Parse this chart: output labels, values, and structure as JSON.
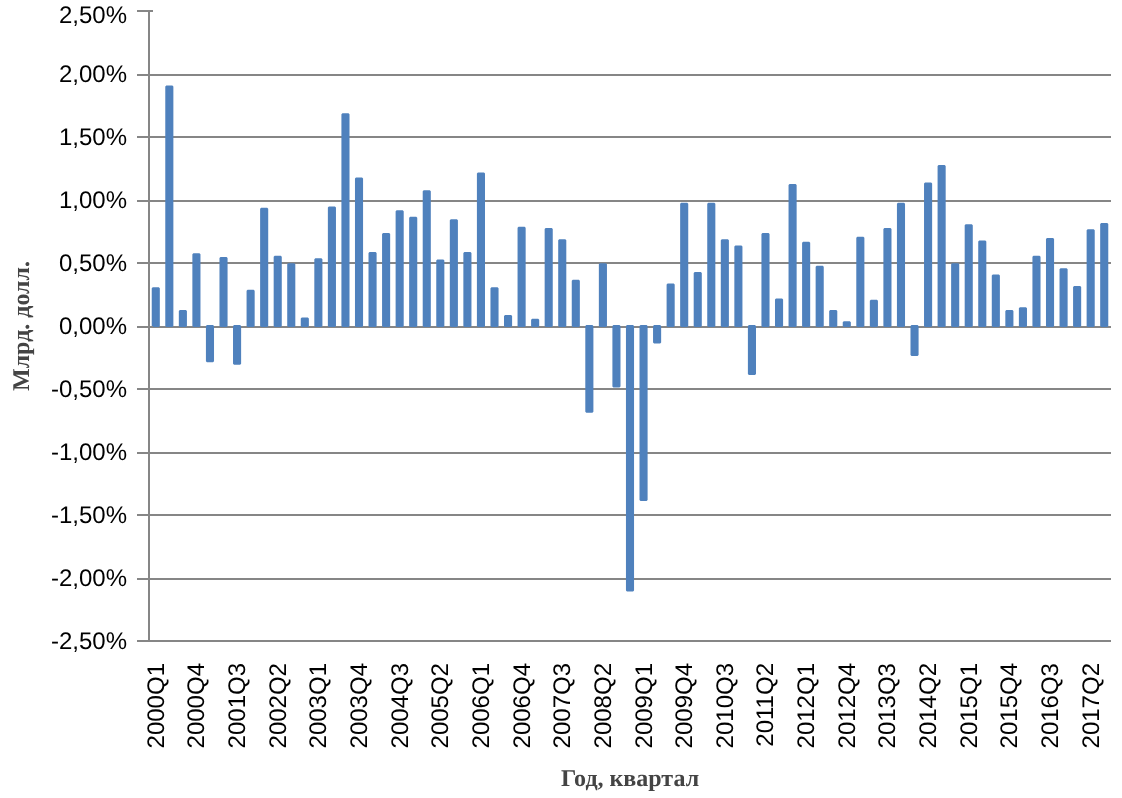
{
  "chart_data": {
    "type": "bar",
    "xlabel": "Год, квартал",
    "ylabel": "Млрд. долл.",
    "categories": [
      "2000Q1",
      null,
      null,
      "2000Q4",
      null,
      null,
      "2001Q3",
      null,
      null,
      "2002Q2",
      null,
      null,
      "2003Q1",
      null,
      null,
      "2003Q4",
      null,
      null,
      "2004Q3",
      null,
      null,
      "2005Q2",
      null,
      null,
      "2006Q1",
      null,
      null,
      "2006Q4",
      null,
      null,
      "2007Q3",
      null,
      null,
      "2008Q2",
      null,
      null,
      "2009Q1",
      null,
      null,
      "2009Q4",
      null,
      null,
      "2010Q3",
      null,
      null,
      "2011Q2",
      null,
      null,
      "2012Q1",
      null,
      null,
      "2012Q4",
      null,
      null,
      "2013Q3",
      null,
      null,
      "2014Q2",
      null,
      null,
      "2015Q1",
      null,
      null,
      "2015Q4",
      null,
      null,
      "2016Q3",
      null,
      null,
      "2017Q2",
      null
    ],
    "values": [
      0.3,
      1.9,
      0.12,
      0.57,
      -0.28,
      0.54,
      -0.3,
      0.28,
      0.93,
      0.55,
      0.49,
      0.06,
      0.53,
      0.94,
      1.68,
      1.17,
      0.58,
      0.73,
      0.91,
      0.86,
      1.07,
      0.52,
      0.84,
      0.58,
      1.21,
      0.3,
      0.08,
      0.78,
      0.05,
      0.77,
      0.68,
      0.36,
      -0.68,
      0.49,
      -0.48,
      -2.1,
      -1.38,
      -0.13,
      0.33,
      0.97,
      0.42,
      0.97,
      0.68,
      0.63,
      -0.38,
      0.73,
      0.21,
      1.12,
      0.66,
      0.47,
      0.12,
      0.03,
      0.7,
      0.2,
      0.77,
      0.97,
      -0.23,
      1.13,
      1.27,
      0.49,
      0.8,
      0.67,
      0.4,
      0.12,
      0.14,
      0.55,
      0.69,
      0.45,
      0.31,
      0.76,
      0.81
    ],
    "color": "#4f81bd",
    "ylim": [
      -2.5,
      2.5
    ],
    "yticks": [
      {
        "value": -2.5,
        "label": "-2,50%"
      },
      {
        "value": -2.0,
        "label": "-2,00%"
      },
      {
        "value": -1.5,
        "label": "-1,50%"
      },
      {
        "value": -1.0,
        "label": "-1,00%"
      },
      {
        "value": -0.5,
        "label": "-0,50%"
      },
      {
        "value": 0,
        "label": "0,00%"
      },
      {
        "value": 0.5,
        "label": "0,50%"
      },
      {
        "value": 1.0,
        "label": "1,00%"
      },
      {
        "value": 1.5,
        "label": "1,50%"
      },
      {
        "value": 2.0,
        "label": "2,00%"
      },
      {
        "value": 2.5,
        "label": "2,50%"
      }
    ],
    "grid": "y"
  }
}
